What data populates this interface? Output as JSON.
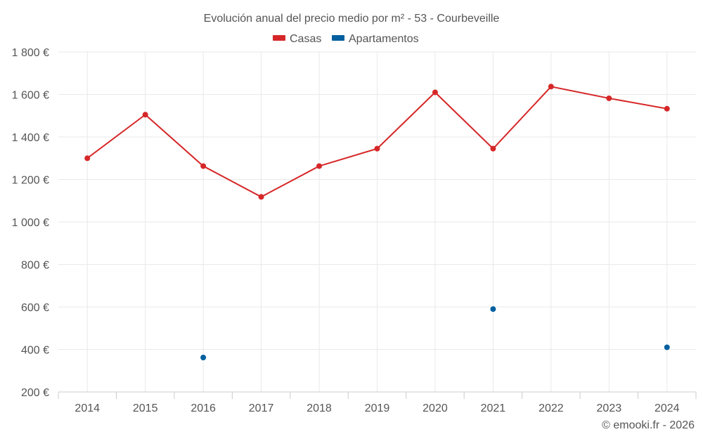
{
  "chart_data": {
    "type": "line",
    "title": "Evolución anual del precio medio por m² - 53 - Courbeveille",
    "categories": [
      "2014",
      "2015",
      "2016",
      "2017",
      "2018",
      "2019",
      "2020",
      "2021",
      "2022",
      "2023",
      "2024"
    ],
    "series": [
      {
        "name": "Casas",
        "color": "#d62728",
        "values": [
          1300,
          1505,
          1263,
          1118,
          1263,
          1345,
          1610,
          1345,
          1637,
          1582,
          1533
        ],
        "show_line": true
      },
      {
        "name": "Apartamentos",
        "color": "#005f9e",
        "values": [
          null,
          null,
          362,
          null,
          null,
          null,
          null,
          590,
          null,
          null,
          410
        ],
        "show_line": false
      }
    ],
    "ylim": [
      200,
      1800
    ],
    "yticks": [
      200,
      400,
      600,
      800,
      1000,
      1200,
      1400,
      1600,
      1800
    ],
    "ytick_labels": [
      "200 €",
      "400 €",
      "600 €",
      "800 €",
      "1 000 €",
      "1 200 €",
      "1 400 €",
      "1 600 €",
      "1 800 €"
    ],
    "xlabel": "",
    "ylabel": "",
    "grid": true,
    "legend_position": "top-center",
    "credit": "© emooki.fr - 2026"
  }
}
